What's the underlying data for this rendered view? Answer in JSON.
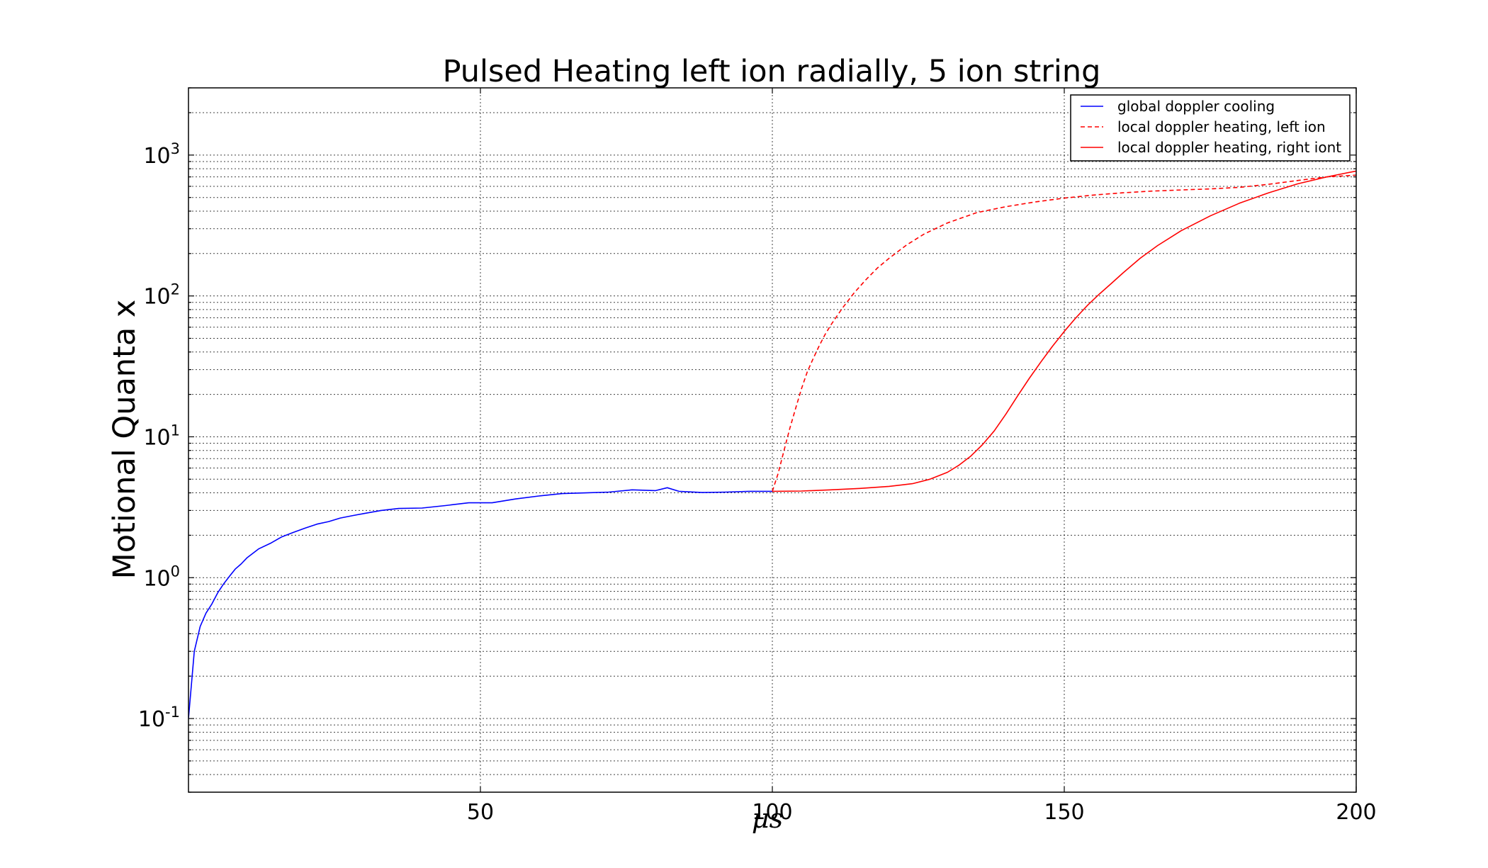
{
  "chart_data": {
    "type": "line",
    "title": "Pulsed Heating left ion radially, 5 ion string",
    "xlabel": "μs",
    "ylabel": "Motional Quanta x",
    "xlim": [
      0,
      200
    ],
    "ylim": [
      0.03,
      3000
    ],
    "yscale": "log",
    "grid": true,
    "legend_position": "top-right",
    "x_ticks": [
      50,
      100,
      150,
      200
    ],
    "x_tick_labels": [
      "50",
      "100",
      "150",
      "200"
    ],
    "y_ticks": [
      0.1,
      1,
      10,
      100,
      1000
    ],
    "y_tick_labels": [
      {
        "base": "10",
        "exp": "-1"
      },
      {
        "base": "10",
        "exp": "0"
      },
      {
        "base": "10",
        "exp": "1"
      },
      {
        "base": "10",
        "exp": "2"
      },
      {
        "base": "10",
        "exp": "3"
      }
    ],
    "series": [
      {
        "name": "global doppler cooling",
        "color": "#0000ff",
        "style": "solid",
        "x": [
          0,
          1,
          2,
          3,
          4,
          5,
          6,
          7,
          8,
          9,
          10,
          12,
          14,
          16,
          18,
          20,
          22,
          24,
          26,
          28,
          30,
          33,
          36,
          40,
          44,
          48,
          52,
          56,
          60,
          64,
          68,
          72,
          76,
          80,
          82,
          84,
          88,
          92,
          96,
          100
        ],
        "y": [
          0.1,
          0.3,
          0.45,
          0.56,
          0.65,
          0.78,
          0.9,
          1.02,
          1.15,
          1.25,
          1.38,
          1.6,
          1.75,
          1.95,
          2.1,
          2.25,
          2.4,
          2.5,
          2.65,
          2.75,
          2.85,
          3.0,
          3.1,
          3.12,
          3.25,
          3.4,
          3.4,
          3.62,
          3.8,
          3.95,
          4.0,
          4.05,
          4.2,
          4.15,
          4.35,
          4.1,
          4.02,
          4.05,
          4.1,
          4.1
        ]
      },
      {
        "name": "local doppler heating, left ion",
        "color": "#ff0000",
        "style": "dashed",
        "x": [
          100,
          101,
          102,
          103,
          104,
          105,
          106,
          107,
          108,
          109,
          110,
          112,
          114,
          116,
          118,
          120,
          123,
          126,
          130,
          135,
          140,
          145,
          150,
          155,
          160,
          165,
          170,
          175,
          180,
          185,
          190,
          195,
          200
        ],
        "y": [
          4.1,
          5.5,
          8.0,
          11.5,
          16,
          22,
          29,
          36,
          44,
          53,
          62,
          82,
          105,
          130,
          158,
          185,
          230,
          275,
          330,
          390,
          430,
          465,
          495,
          520,
          540,
          555,
          565,
          575,
          590,
          620,
          660,
          700,
          720
        ]
      },
      {
        "name": "local doppler heating, right iont",
        "color": "#ff0000",
        "style": "solid",
        "x": [
          100,
          105,
          110,
          115,
          120,
          124,
          127,
          130,
          132,
          134,
          136,
          138,
          140,
          142,
          144,
          146,
          148,
          150,
          152,
          154,
          156,
          158,
          160,
          163,
          166,
          170,
          175,
          180,
          185,
          190,
          195,
          200
        ],
        "y": [
          4.1,
          4.12,
          4.2,
          4.3,
          4.45,
          4.65,
          5.0,
          5.6,
          6.3,
          7.3,
          8.8,
          11,
          14.5,
          19.5,
          26,
          34,
          44,
          56,
          70,
          86,
          103,
          122,
          145,
          185,
          228,
          290,
          370,
          455,
          540,
          625,
          700,
          770
        ]
      }
    ]
  }
}
